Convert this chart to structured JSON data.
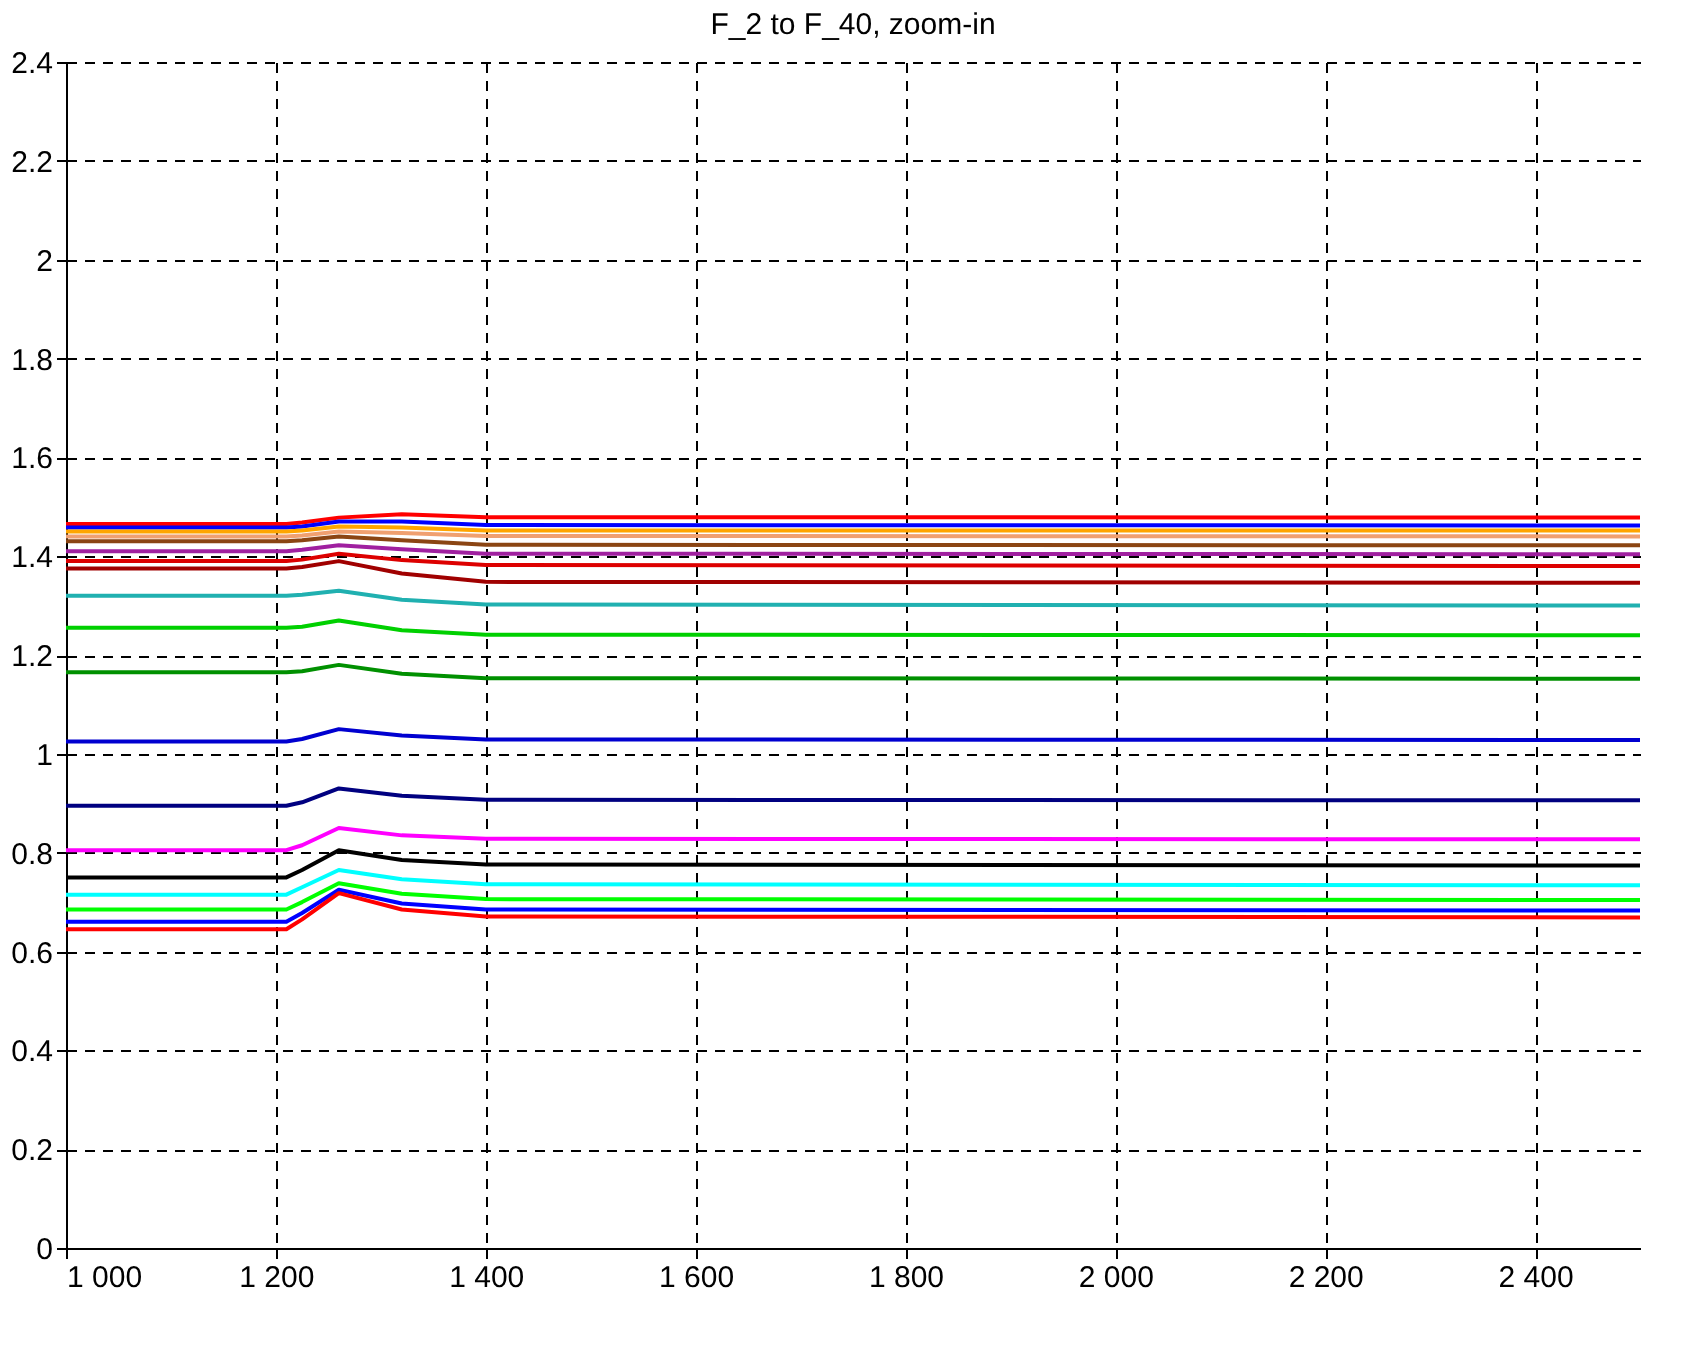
{
  "chart_data": {
    "type": "line",
    "title": "F_2 to F_40, zoom-in",
    "x": [
      1000,
      1210,
      1225,
      1260,
      1320,
      1400,
      2500
    ],
    "series": [
      {
        "color": "#ff0000",
        "values": [
          1.465,
          1.465,
          1.468,
          1.478,
          1.485,
          1.479,
          1.478
        ]
      },
      {
        "color": "#0000ff",
        "values": [
          1.458,
          1.458,
          1.46,
          1.47,
          1.47,
          1.463,
          1.462
        ]
      },
      {
        "color": "#ffa500",
        "values": [
          1.45,
          1.45,
          1.452,
          1.46,
          1.458,
          1.452,
          1.452
        ]
      },
      {
        "color": "#f0a070",
        "values": [
          1.44,
          1.44,
          1.442,
          1.45,
          1.447,
          1.441,
          1.44
        ]
      },
      {
        "color": "#8b4513",
        "values": [
          1.43,
          1.43,
          1.432,
          1.44,
          1.432,
          1.423,
          1.422
        ]
      },
      {
        "color": "#a020a0",
        "values": [
          1.41,
          1.41,
          1.413,
          1.422,
          1.414,
          1.405,
          1.404
        ]
      },
      {
        "color": "#dd0000",
        "values": [
          1.39,
          1.39,
          1.393,
          1.405,
          1.392,
          1.382,
          1.38
        ]
      },
      {
        "color": "#a00000",
        "values": [
          1.375,
          1.375,
          1.378,
          1.39,
          1.365,
          1.348,
          1.346
        ]
      },
      {
        "color": "#20b0b0",
        "values": [
          1.32,
          1.32,
          1.322,
          1.33,
          1.312,
          1.302,
          1.3
        ]
      },
      {
        "color": "#00d000",
        "values": [
          1.255,
          1.255,
          1.257,
          1.27,
          1.25,
          1.241,
          1.24
        ]
      },
      {
        "color": "#009000",
        "values": [
          1.165,
          1.165,
          1.167,
          1.18,
          1.162,
          1.153,
          1.152
        ]
      },
      {
        "color": "#0000d0",
        "values": [
          1.025,
          1.025,
          1.03,
          1.05,
          1.037,
          1.029,
          1.028
        ]
      },
      {
        "color": "#000080",
        "values": [
          0.895,
          0.895,
          0.902,
          0.93,
          0.915,
          0.907,
          0.906
        ]
      },
      {
        "color": "#ff00ff",
        "values": [
          0.805,
          0.805,
          0.815,
          0.85,
          0.835,
          0.828,
          0.827
        ]
      },
      {
        "color": "#000000",
        "values": [
          0.75,
          0.75,
          0.765,
          0.805,
          0.785,
          0.776,
          0.774
        ]
      },
      {
        "color": "#00ffff",
        "values": [
          0.715,
          0.715,
          0.73,
          0.765,
          0.746,
          0.736,
          0.734
        ]
      },
      {
        "color": "#00ff00",
        "values": [
          0.685,
          0.685,
          0.7,
          0.738,
          0.717,
          0.706,
          0.704
        ]
      },
      {
        "color": "#0000ff",
        "values": [
          0.66,
          0.66,
          0.678,
          0.725,
          0.697,
          0.685,
          0.683
        ]
      },
      {
        "color": "#ff0000",
        "values": [
          0.645,
          0.645,
          0.665,
          0.718,
          0.685,
          0.671,
          0.669
        ]
      }
    ],
    "xlim": [
      1000,
      2500
    ],
    "xticks": [
      {
        "value": 1000,
        "label": "1 000"
      },
      {
        "value": 1200,
        "label": "1 200"
      },
      {
        "value": 1400,
        "label": "1 400"
      },
      {
        "value": 1600,
        "label": "1 600"
      },
      {
        "value": 1800,
        "label": "1 800"
      },
      {
        "value": 2000,
        "label": "2 000"
      },
      {
        "value": 2200,
        "label": "2 200"
      },
      {
        "value": 2400,
        "label": "2 400"
      }
    ],
    "ylim": [
      0,
      2.4
    ],
    "yticks": [
      0,
      0.2,
      0.4,
      0.6,
      0.8,
      1,
      1.2,
      1.4,
      1.6,
      1.8,
      2,
      2.2,
      2.4
    ],
    "grid": true,
    "legend": false,
    "marker": "none",
    "line_style": "solid"
  }
}
